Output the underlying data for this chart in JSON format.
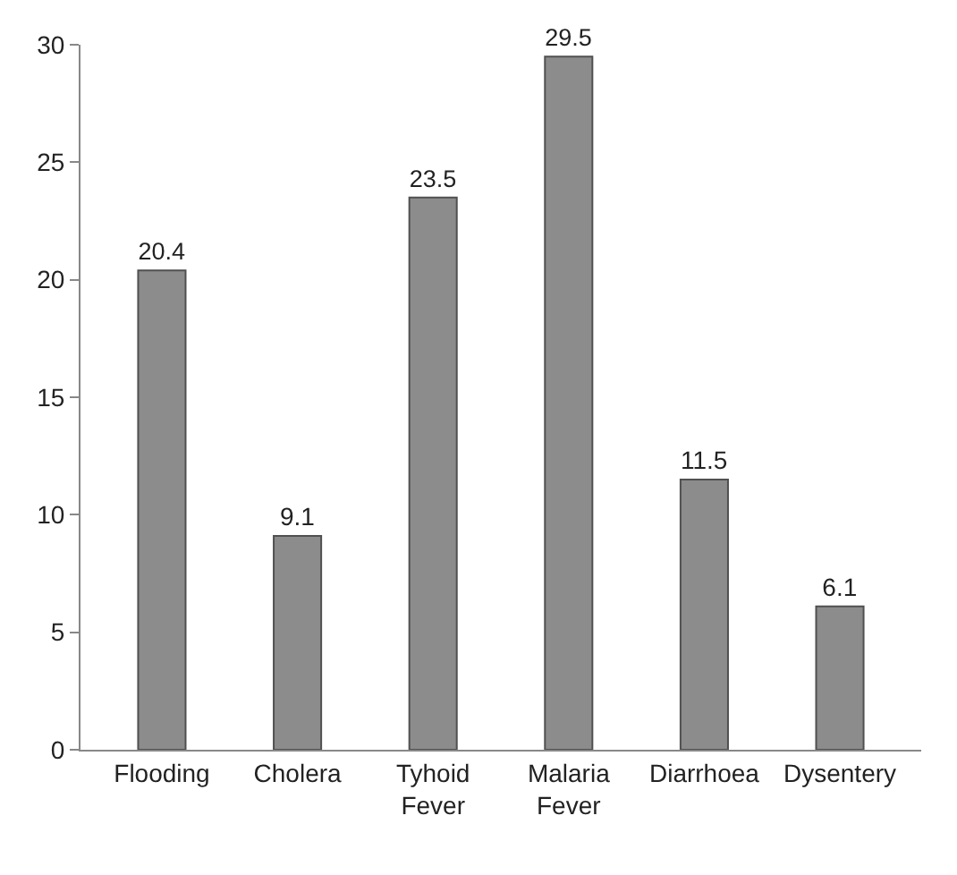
{
  "chart_data": {
    "type": "bar",
    "categories": [
      "Flooding",
      "Cholera",
      "Tyhoid Fever",
      "Malaria Fever",
      "Diarrhoea",
      "Dysentery"
    ],
    "values": [
      20.4,
      9.1,
      23.5,
      29.5,
      11.5,
      6.1
    ],
    "color": "#8c8c8c",
    "ylim": [
      0,
      30
    ],
    "yticks": [
      0,
      5,
      10,
      15,
      20,
      25,
      30
    ],
    "data_labels": true
  }
}
